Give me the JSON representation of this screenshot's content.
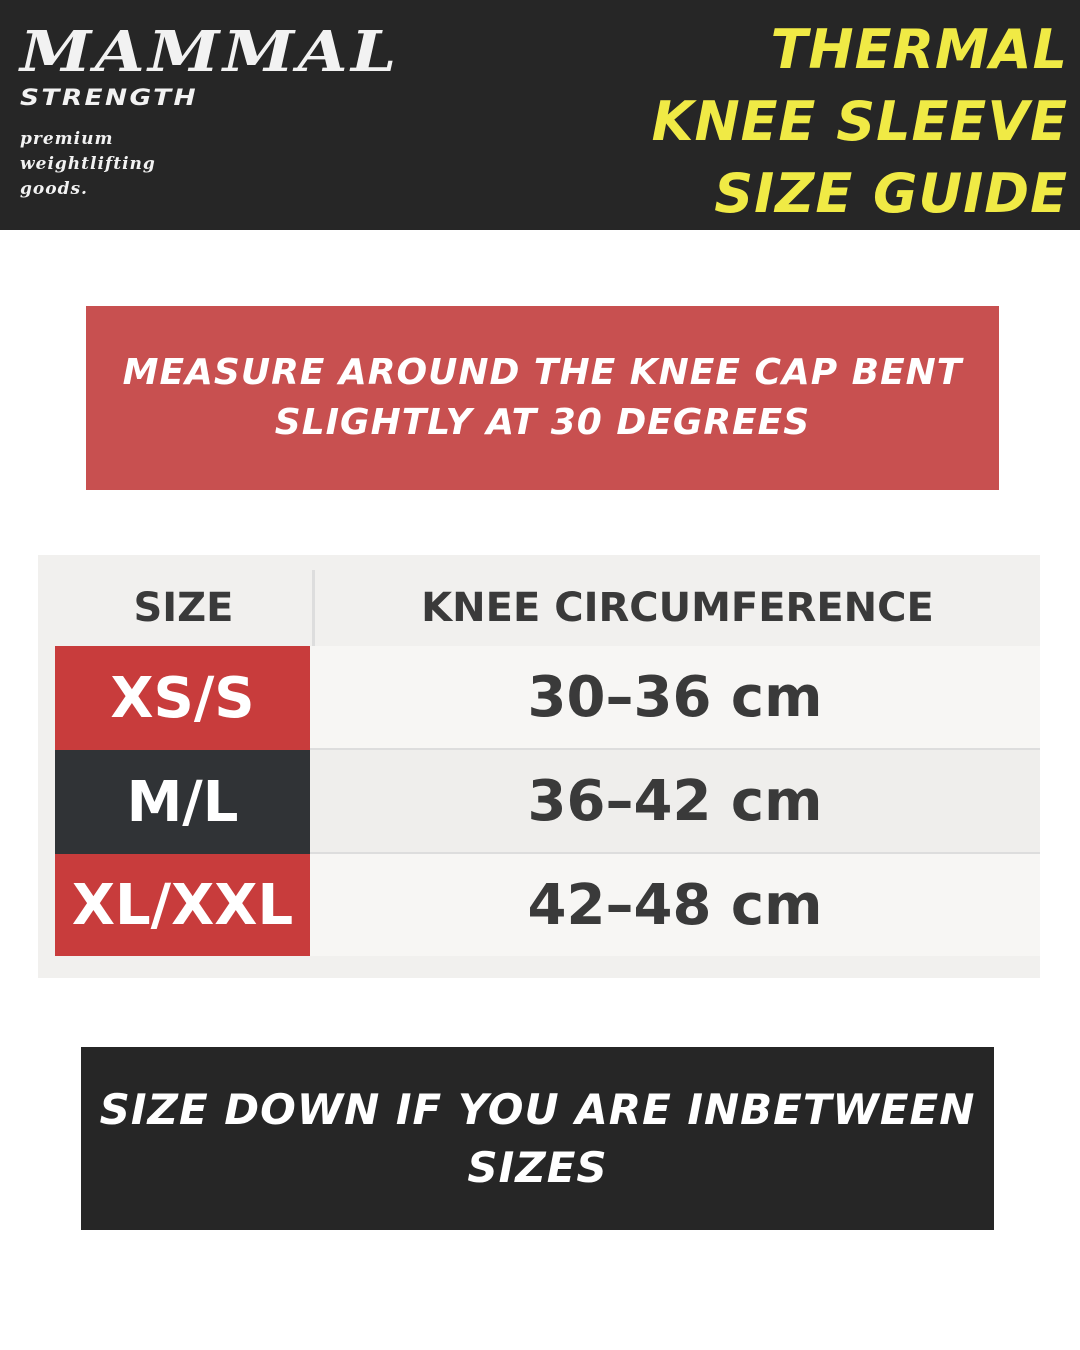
{
  "brand": {
    "name": "MAMMAL",
    "sub": "STRENGTH",
    "tagline": [
      "premium",
      "weightlifting",
      "goods."
    ]
  },
  "title": [
    "THERMAL",
    "KNEE SLEEVE",
    "SIZE GUIDE"
  ],
  "measure_note": "MEASURE AROUND THE KNEE CAP BENT SLIGHTLY AT 30 DEGREES",
  "table": {
    "headers": [
      "SIZE",
      "KNEE CIRCUMFERENCE"
    ],
    "rows": [
      {
        "size": "XS/S",
        "range": "30–36 cm",
        "color": "#c83c3c"
      },
      {
        "size": "M/L",
        "range": "36–42 cm",
        "color": "#303336"
      },
      {
        "size": "XL/XXL",
        "range": "42–48 cm",
        "color": "#c83c3c"
      }
    ]
  },
  "footer_note": "SIZE DOWN IF YOU ARE INBETWEEN SIZES",
  "colors": {
    "dark": "#262626",
    "yellow": "#f0ea45",
    "red": "#c85050"
  }
}
